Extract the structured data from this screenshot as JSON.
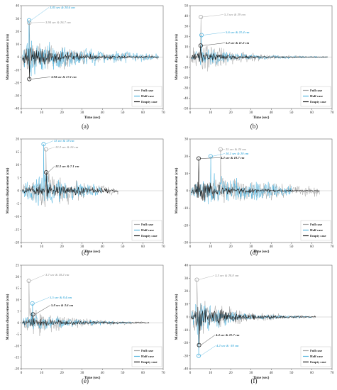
{
  "colors": {
    "full": "#a6a6a6",
    "half": "#4fb3de",
    "empty": "#1a1a1a"
  },
  "legend": [
    "Full case",
    "Half case",
    "Empty case"
  ],
  "xlabel": "Time (sec)",
  "ylabel": "Maximum displacement (cm)",
  "chart_data": [
    {
      "type": "line",
      "panel_label": "(a)",
      "xlim": [
        0,
        70
      ],
      "ylim": [
        -40,
        40
      ],
      "xticks": [
        "0",
        "10",
        "20",
        "30",
        "40",
        "50",
        "60",
        "70"
      ],
      "yticks": [
        "-40",
        "-30",
        "-20",
        "-10",
        "0",
        "10",
        "20",
        "30",
        "40"
      ],
      "xlabel": "Time (sec)",
      "ylabel": "Maximum displacement (cm)",
      "legend_position": "bottom-right",
      "series": [
        {
          "name": "Full case",
          "duration": 68,
          "peak_t": 3.94,
          "peak_v": 26.7,
          "amp": 13,
          "decay": 0.035
        },
        {
          "name": "Half case",
          "duration": 68,
          "peak_t": 3.85,
          "peak_v": 28.6,
          "amp": 14,
          "decay": 0.03
        },
        {
          "name": "Empty case",
          "duration": 68,
          "peak_t": 3.94,
          "peak_v": -17.1,
          "amp": 8,
          "decay": 0.05
        }
      ],
      "annotations": [
        {
          "text": "3.85 sec & 28.6 cm",
          "series": "Half case"
        },
        {
          "text": "3.94 sec & 26.7 cm",
          "series": "Full case"
        },
        {
          "text": "3.94 sec & 17.1 cm",
          "series": "Empty case"
        }
      ]
    },
    {
      "type": "line",
      "panel_label": "(b)",
      "xlim": [
        0,
        70
      ],
      "ylim": [
        -50,
        50
      ],
      "xticks": [
        "0",
        "10",
        "20",
        "30",
        "40",
        "50",
        "60",
        "70"
      ],
      "yticks": [
        "-50",
        "-40",
        "-30",
        "-20",
        "-10",
        "0",
        "10",
        "20",
        "30",
        "40",
        "50"
      ],
      "xlabel": "Time (sec)",
      "ylabel": "Maximum displacement (cm)",
      "legend_position": "bottom-right",
      "series": [
        {
          "name": "Full case",
          "duration": 68,
          "peak_t": 5.3,
          "peak_v": 39,
          "amp": 16,
          "decay": 0.06
        },
        {
          "name": "Half case",
          "duration": 68,
          "peak_t": 5.6,
          "peak_v": 21.4,
          "amp": 9,
          "decay": 0.05
        },
        {
          "name": "Empty case",
          "duration": 68,
          "peak_t": 5.2,
          "peak_v": 11.2,
          "amp": 5,
          "decay": 0.06
        }
      ],
      "annotations": [
        {
          "text": "5.3 sec & 39 cm",
          "series": "Full case"
        },
        {
          "text": "5.6 sec & 21.4 cm",
          "series": "Half case"
        },
        {
          "text": "5.2 sec & 11.2 cm",
          "series": "Empty case"
        }
      ]
    },
    {
      "type": "line",
      "panel_label": "(c)",
      "xlim": [
        0,
        70
      ],
      "ylim": [
        -20,
        20
      ],
      "xticks": [
        "0",
        "10",
        "20",
        "30",
        "40",
        "50",
        "60",
        "70"
      ],
      "yticks": [
        "-20",
        "-15",
        "-10",
        "-5",
        "0",
        "5",
        "10",
        "15",
        "20"
      ],
      "xlabel": "Time (sec)",
      "ylabel": "Maximum displacement (cm)",
      "legend_position": "bottom-right",
      "series": [
        {
          "name": "Full case",
          "duration": 48,
          "peak_t": 12.2,
          "peak_v": 16,
          "amp": 7,
          "decay": 0.05
        },
        {
          "name": "Half case",
          "duration": 40,
          "peak_t": 11,
          "peak_v": 18,
          "amp": 8,
          "decay": 0.06
        },
        {
          "name": "Empty case",
          "duration": 48,
          "peak_t": 12.3,
          "peak_v": 7.1,
          "amp": 3,
          "decay": 0.05
        }
      ],
      "annotations": [
        {
          "text": "11 sec & 18 cm",
          "series": "Half case"
        },
        {
          "text": "12.2 sec & 16 cm",
          "series": "Full case"
        },
        {
          "text": "12.3 sec & 7.1 cm",
          "series": "Empty case"
        }
      ]
    },
    {
      "type": "line",
      "panel_label": "(d)",
      "xlim": [
        0,
        70
      ],
      "ylim": [
        -30,
        30
      ],
      "xticks": [
        "0",
        "10",
        "20",
        "30",
        "40",
        "50",
        "60",
        "70"
      ],
      "yticks": [
        "-30",
        "-20",
        "-10",
        "0",
        "10",
        "20",
        "30"
      ],
      "xlabel": "Time (sec)",
      "ylabel": "Maximum displacement (cm)",
      "legend_position": "bottom-right",
      "series": [
        {
          "name": "Full case",
          "duration": 64,
          "peak_t": 15,
          "peak_v": 24,
          "amp": 7,
          "decay": 0.02
        },
        {
          "name": "Half case",
          "duration": 50,
          "peak_t": 10.1,
          "peak_v": 20,
          "amp": 9,
          "decay": 0.03
        },
        {
          "name": "Empty case",
          "duration": 64,
          "peak_t": 4.2,
          "peak_v": 18.7,
          "amp": 6,
          "decay": 0.06
        }
      ],
      "annotations": [
        {
          "text": "15 sec & 24 cm",
          "series": "Full case"
        },
        {
          "text": "10.1 sec & 20 cm",
          "series": "Half case"
        },
        {
          "text": "4.2 sec & 18.7 cm",
          "series": "Empty case"
        }
      ]
    },
    {
      "type": "line",
      "panel_label": "(e)",
      "xlim": [
        0,
        70
      ],
      "ylim": [
        -20,
        25
      ],
      "xticks": [
        "0",
        "10",
        "20",
        "30",
        "40",
        "50",
        "60",
        "70"
      ],
      "yticks": [
        "-20",
        "-15",
        "-10",
        "-5",
        "0",
        "5",
        "10",
        "15",
        "20",
        "25"
      ],
      "xlabel": "Time (sec)",
      "ylabel": "Maximum displacement (cm)",
      "legend_position": "bottom-right",
      "series": [
        {
          "name": "Full case",
          "duration": 60,
          "peak_t": 3.7,
          "peak_v": 18.2,
          "amp": 6,
          "decay": 0.05
        },
        {
          "name": "Half case",
          "duration": 55,
          "peak_t": 5.5,
          "peak_v": 8.4,
          "amp": 4,
          "decay": 0.05
        },
        {
          "name": "Empty case",
          "duration": 63,
          "peak_t": 5.8,
          "peak_v": 3.6,
          "amp": 1.8,
          "decay": 0.04
        }
      ],
      "annotations": [
        {
          "text": "3.7 sec & 18.2 cm",
          "series": "Full case"
        },
        {
          "text": "5.5 sec & 8.4 cm",
          "series": "Half case"
        },
        {
          "text": "5.8 sec & 3.6 cm",
          "series": "Empty case"
        }
      ]
    },
    {
      "type": "line",
      "panel_label": "(f)",
      "xlim": [
        0,
        70
      ],
      "ylim": [
        -40,
        40
      ],
      "xticks": [
        "0",
        "10",
        "20",
        "30",
        "40",
        "50",
        "60",
        "70"
      ],
      "yticks": [
        "-40",
        "-30",
        "-20",
        "-10",
        "0",
        "10",
        "20",
        "30",
        "40"
      ],
      "xlabel": "Time (sec)",
      "ylabel": "Maximum displacement (cm)",
      "legend_position": "bottom-right",
      "series": [
        {
          "name": "Full case",
          "duration": 62,
          "peak_t": 3.3,
          "peak_v": 28.8,
          "amp": 14,
          "decay": 0.05
        },
        {
          "name": "Half case",
          "duration": 60,
          "peak_t": 4.2,
          "peak_v": -30,
          "amp": 12,
          "decay": 0.06
        },
        {
          "name": "Empty case",
          "duration": 62,
          "peak_t": 4.4,
          "peak_v": -21.7,
          "amp": 9,
          "decay": 0.06
        }
      ],
      "annotations": [
        {
          "text": "3.3 sec & 28.8 cm",
          "series": "Full case"
        },
        {
          "text": "4.4 sec & 21.7 cm",
          "series": "Empty case"
        },
        {
          "text": "4.2 sec & -30 cm",
          "series": "Half case"
        }
      ]
    }
  ]
}
